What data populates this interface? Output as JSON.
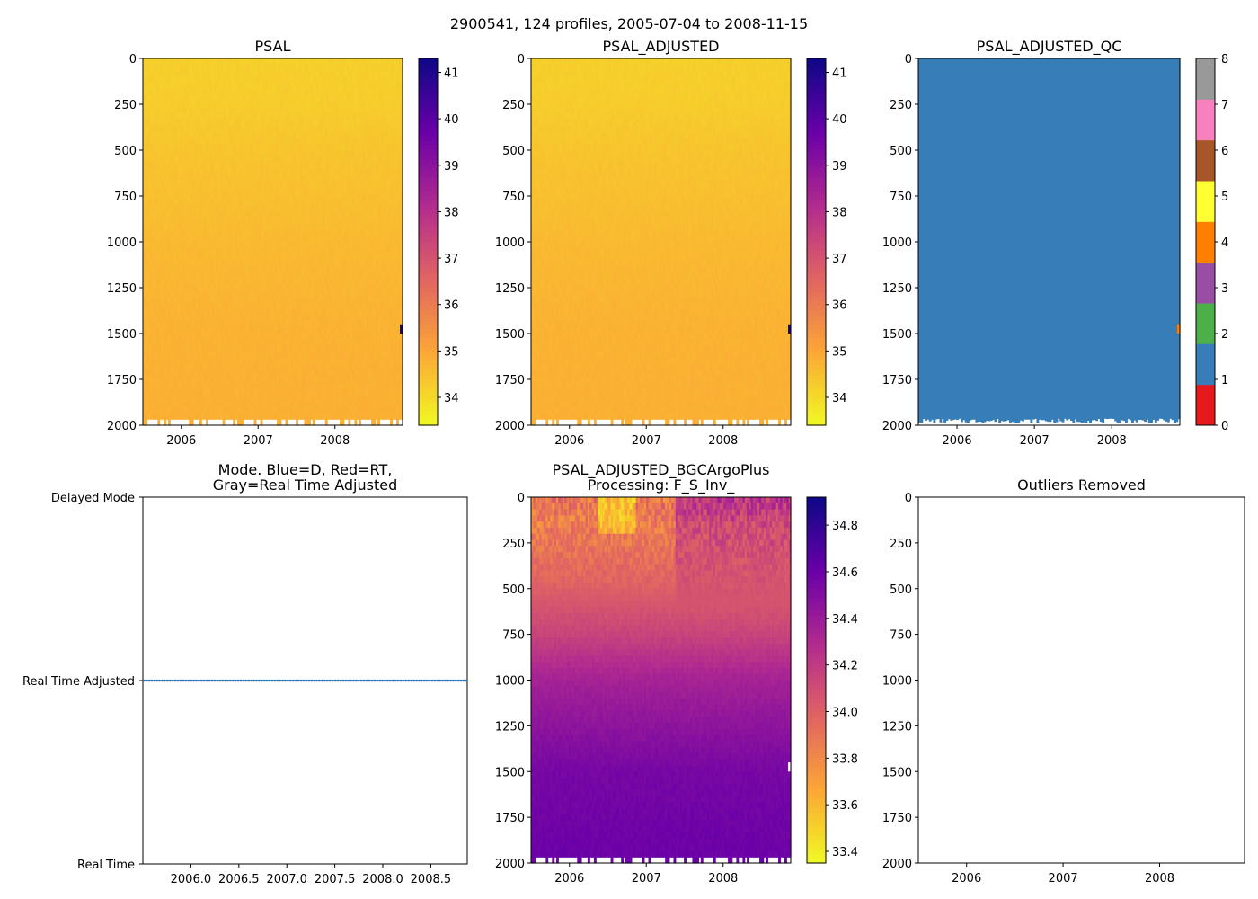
{
  "figure": {
    "suptitle": "2900541, 124 profiles, 2005-07-04 to 2008-11-15"
  },
  "colors": {
    "plasma_r": [
      "#f0f921",
      "#fca636",
      "#e16462",
      "#b12a90",
      "#6a00a8",
      "#0d0887"
    ],
    "qc_palette": [
      "#e41a1c",
      "#377eb8",
      "#4daf4a",
      "#984ea3",
      "#ff7f00",
      "#ffff33",
      "#a65628",
      "#f781bf",
      "#999999"
    ],
    "mode_line": "#1f77b4",
    "axis": "#000000"
  },
  "chart_data": [
    {
      "id": "psal",
      "type": "heatmap",
      "title": "PSAL",
      "x_ticks": [
        "2006",
        "2007",
        "2008"
      ],
      "x_tick_values": [
        2006,
        2007,
        2008
      ],
      "xlim": [
        2005.5,
        2008.88
      ],
      "ylim": [
        2000,
        0
      ],
      "y_ticks": [
        "0",
        "250",
        "500",
        "750",
        "1000",
        "1250",
        "1500",
        "1750",
        "2000"
      ],
      "colorbar": {
        "range": [
          33.4,
          41.3
        ],
        "ticks": [
          "34",
          "35",
          "36",
          "37",
          "38",
          "39",
          "40",
          "41"
        ],
        "tick_values": [
          34,
          35,
          36,
          37,
          38,
          39,
          40,
          41
        ]
      },
      "profiles": 124,
      "salinity_by_depth": {
        "depth": [
          0,
          250,
          500,
          1000,
          1500,
          2000
        ],
        "value": [
          34.2,
          34.25,
          34.4,
          34.6,
          34.75,
          34.8
        ]
      }
    },
    {
      "id": "psal_adjusted",
      "type": "heatmap",
      "title": "PSAL_ADJUSTED",
      "x_ticks": [
        "2006",
        "2007",
        "2008"
      ],
      "x_tick_values": [
        2006,
        2007,
        2008
      ],
      "xlim": [
        2005.5,
        2008.88
      ],
      "ylim": [
        2000,
        0
      ],
      "y_ticks": [
        "0",
        "250",
        "500",
        "750",
        "1000",
        "1250",
        "1500",
        "1750",
        "2000"
      ],
      "colorbar": {
        "range": [
          33.4,
          41.3
        ],
        "ticks": [
          "34",
          "35",
          "36",
          "37",
          "38",
          "39",
          "40",
          "41"
        ],
        "tick_values": [
          34,
          35,
          36,
          37,
          38,
          39,
          40,
          41
        ]
      },
      "profiles": 124,
      "salinity_by_depth": {
        "depth": [
          0,
          250,
          500,
          1000,
          1500,
          2000
        ],
        "value": [
          34.2,
          34.25,
          34.4,
          34.6,
          34.75,
          34.8
        ]
      }
    },
    {
      "id": "psal_adjusted_qc",
      "type": "heatmap",
      "title": "PSAL_ADJUSTED_QC",
      "x_ticks": [
        "2006",
        "2007",
        "2008"
      ],
      "x_tick_values": [
        2006,
        2007,
        2008
      ],
      "xlim": [
        2005.5,
        2008.88
      ],
      "ylim": [
        2000,
        0
      ],
      "y_ticks": [
        "0",
        "250",
        "500",
        "750",
        "1000",
        "1250",
        "1500",
        "1750",
        "2000"
      ],
      "colorbar": {
        "range": [
          0,
          8
        ],
        "ticks": [
          "0",
          "1",
          "2",
          "3",
          "4",
          "5",
          "6",
          "7",
          "8"
        ],
        "tick_values": [
          0,
          1,
          2,
          3,
          4,
          5,
          6,
          7,
          8
        ]
      },
      "dominant_qc_flag": 1,
      "outlier_qc_flag": 4,
      "outlier_depth_range": [
        1450,
        1500
      ]
    },
    {
      "id": "mode",
      "type": "scatter",
      "title": "Mode. Blue=D, Red=RT,\nGray=Real Time Adjusted",
      "x_ticks": [
        "2006.0",
        "2006.5",
        "2007.0",
        "2007.5",
        "2008.0",
        "2008.5"
      ],
      "x_tick_values": [
        2006.0,
        2006.5,
        2007.0,
        2007.5,
        2008.0,
        2008.5
      ],
      "xlim": [
        2005.5,
        2008.88
      ],
      "y_categories": [
        "Delayed Mode",
        "Real Time Adjusted",
        "Real Time"
      ],
      "y_category_values": [
        2,
        1,
        0
      ],
      "points": {
        "count": 124,
        "x_start": 2005.51,
        "x_end": 2008.87,
        "y": 1
      }
    },
    {
      "id": "bgc",
      "type": "heatmap",
      "title": "PSAL_ADJUSTED_BGCArgoPlus\nProcessing: F_S_Inv_",
      "x_ticks": [
        "2006",
        "2007",
        "2008"
      ],
      "x_tick_values": [
        2006,
        2007,
        2008
      ],
      "xlim": [
        2005.5,
        2008.88
      ],
      "ylim": [
        2000,
        0
      ],
      "y_ticks": [
        "0",
        "250",
        "500",
        "750",
        "1000",
        "1250",
        "1500",
        "1750",
        "2000"
      ],
      "colorbar": {
        "range": [
          33.35,
          34.92
        ],
        "ticks": [
          "33.4",
          "33.6",
          "33.8",
          "34.0",
          "34.2",
          "34.4",
          "34.6",
          "34.8"
        ],
        "tick_values": [
          33.4,
          33.6,
          33.8,
          34.0,
          34.2,
          34.4,
          34.6,
          34.8
        ]
      },
      "salinity_by_depth": {
        "depth": [
          0,
          150,
          400,
          750,
          1000,
          1500,
          2000
        ],
        "value": [
          33.9,
          33.85,
          33.95,
          34.15,
          34.35,
          34.55,
          34.6
        ]
      }
    },
    {
      "id": "outliers",
      "type": "scatter",
      "title": "Outliers Removed",
      "x_ticks": [
        "2006",
        "2007",
        "2008"
      ],
      "x_tick_values": [
        2006,
        2007,
        2008
      ],
      "xlim": [
        2005.5,
        2008.88
      ],
      "ylim": [
        2000,
        0
      ],
      "y_ticks": [
        "0",
        "250",
        "500",
        "750",
        "1000",
        "1250",
        "1500",
        "1750",
        "2000"
      ],
      "points": []
    }
  ]
}
